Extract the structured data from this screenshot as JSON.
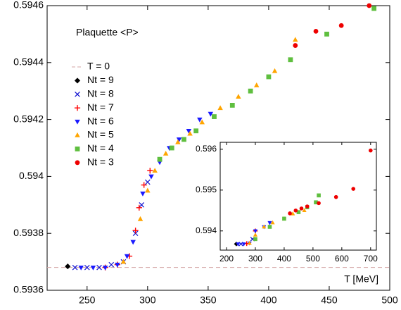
{
  "chart_data": [
    {
      "type": "scatter",
      "title": "Plaquette <P>",
      "x_label": "T [MeV]",
      "xlim": [
        217,
        500
      ],
      "ylim": [
        0.5936,
        0.5946
      ],
      "xticks": [
        250,
        300,
        350,
        400,
        450,
        500
      ],
      "yticks": [
        0.5936,
        0.5938,
        0.594,
        0.5942,
        0.5944,
        0.5946
      ],
      "reference_line": {
        "name": "T = 0",
        "value": 0.59368,
        "color": "#d4a5a5"
      },
      "series": [
        {
          "name": "Nt = 9",
          "color": "#000000",
          "marker": "diamond",
          "x": [
            234
          ],
          "values": [
            0.593684
          ]
        },
        {
          "name": "Nt = 8",
          "color": "#1010d0",
          "marker": "x",
          "x": [
            240,
            250,
            260,
            270,
            280,
            290,
            295,
            300
          ],
          "values": [
            0.59368,
            0.59368,
            0.59368,
            0.59369,
            0.5937,
            0.5938,
            0.5939,
            0.59398
          ]
        },
        {
          "name": "Nt = 7",
          "color": "#ff0000",
          "marker": "plus",
          "x": [
            265,
            275,
            285,
            290,
            293,
            297,
            302
          ],
          "values": [
            0.59368,
            0.59369,
            0.59372,
            0.59381,
            0.59389,
            0.59397,
            0.59402
          ]
        },
        {
          "name": "Nt = 6",
          "color": "#1a1aff",
          "marker": "triangle-down",
          "x": [
            245,
            255,
            265,
            275,
            283,
            288,
            296,
            303,
            310,
            318,
            326,
            334,
            343,
            352
          ],
          "values": [
            0.59368,
            0.59368,
            0.59368,
            0.59369,
            0.59372,
            0.59377,
            0.59394,
            0.594,
            0.59405,
            0.5941,
            0.59413,
            0.59416,
            0.5942,
            0.59422
          ]
        },
        {
          "name": "Nt = 5",
          "color": "#ffa500",
          "marker": "triangle-up",
          "x": [
            280,
            294,
            300,
            306,
            315,
            325,
            335,
            345,
            360,
            375,
            390,
            405,
            422
          ],
          "values": [
            0.5937,
            0.59385,
            0.59395,
            0.59402,
            0.59408,
            0.59412,
            0.59415,
            0.59419,
            0.59424,
            0.59428,
            0.59432,
            0.59437,
            0.59448
          ]
        },
        {
          "name": "Nt = 4",
          "color": "#5fbf3f",
          "marker": "square",
          "x": [
            310,
            320,
            330,
            340,
            355,
            370,
            385,
            400,
            418,
            448,
            487
          ],
          "values": [
            0.59406,
            0.5941,
            0.59413,
            0.59416,
            0.59421,
            0.59425,
            0.5943,
            0.59435,
            0.59441,
            0.5945,
            0.59459
          ]
        },
        {
          "name": "Nt = 3",
          "color": "#ee0000",
          "marker": "circle",
          "x": [
            422,
            439,
            460,
            483
          ],
          "values": [
            0.59446,
            0.59451,
            0.59453,
            0.5946
          ]
        }
      ]
    },
    {
      "type": "scatter",
      "xlim": [
        178,
        720
      ],
      "ylim": [
        0.59353,
        0.59617
      ],
      "xticks": [
        200,
        300,
        400,
        500,
        600,
        700
      ],
      "yticks": [
        0.594,
        0.595,
        0.596
      ],
      "series": [
        {
          "color": "#000000",
          "marker": "diamond",
          "x": [
            234
          ],
          "values": [
            0.59368
          ]
        },
        {
          "color": "#1010d0",
          "marker": "x",
          "x": [
            250,
            290
          ],
          "values": [
            0.59368,
            0.5938
          ]
        },
        {
          "color": "#ff0000",
          "marker": "plus",
          "x": [
            270,
            300
          ],
          "values": [
            0.59369,
            0.594
          ]
        },
        {
          "color": "#1a1aff",
          "marker": "triangle-down",
          "x": [
            240,
            260,
            280,
            300,
            330,
            350
          ],
          "values": [
            0.59368,
            0.59368,
            0.5937,
            0.594,
            0.5941,
            0.5942
          ]
        },
        {
          "color": "#ffa500",
          "marker": "triangle-up",
          "x": [
            280,
            300,
            330,
            360,
            400,
            430,
            470
          ],
          "values": [
            0.5937,
            0.5939,
            0.5941,
            0.5942,
            0.5943,
            0.59442,
            0.5945
          ]
        },
        {
          "color": "#5fbf3f",
          "marker": "square",
          "x": [
            300,
            350,
            400,
            450,
            480,
            510,
            520
          ],
          "values": [
            0.5938,
            0.5941,
            0.5943,
            0.59446,
            0.59458,
            0.5947,
            0.59487
          ]
        },
        {
          "color": "#ee0000",
          "marker": "circle",
          "x": [
            420,
            440,
            460,
            480,
            520,
            580,
            640,
            700
          ],
          "values": [
            0.59443,
            0.5945,
            0.59455,
            0.5946,
            0.59468,
            0.59483,
            0.59503,
            0.59597
          ]
        }
      ]
    }
  ]
}
